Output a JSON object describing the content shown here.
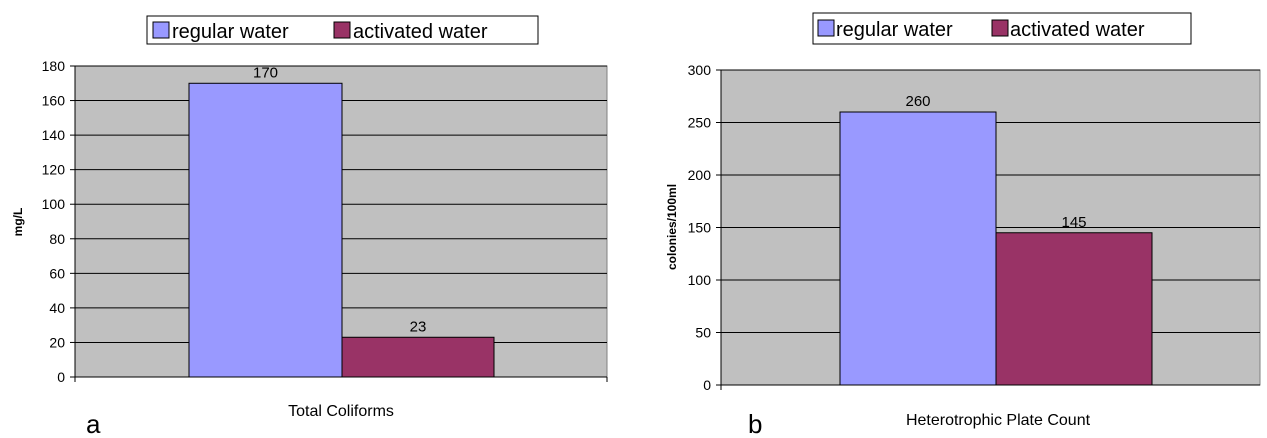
{
  "chart_data": [
    {
      "type": "bar",
      "panel_label": "a",
      "categories": [
        "Total Coliforms"
      ],
      "series": [
        {
          "name": "regular water",
          "values": [
            170
          ],
          "color": "#9999ff"
        },
        {
          "name": "activated water",
          "values": [
            23
          ],
          "color": "#993366"
        }
      ],
      "xlabel": "",
      "ylabel": "mg/L",
      "ylim": [
        0,
        180
      ],
      "yticks": [
        0,
        20,
        40,
        60,
        80,
        100,
        120,
        140,
        160,
        180
      ],
      "data_labels": [
        "170",
        "23"
      ],
      "grid": true,
      "plot_background": "#c0c0c0",
      "legend_position": "top"
    },
    {
      "type": "bar",
      "panel_label": "b",
      "categories": [
        "Heterotrophic Plate Count"
      ],
      "series": [
        {
          "name": "regular water",
          "values": [
            260
          ],
          "color": "#9999ff"
        },
        {
          "name": "activated water",
          "values": [
            145
          ],
          "color": "#993366"
        }
      ],
      "xlabel": "",
      "ylabel": "colonies/100ml",
      "ylim": [
        0,
        300
      ],
      "yticks": [
        0,
        50,
        100,
        150,
        200,
        250,
        300
      ],
      "data_labels": [
        "260",
        "145"
      ],
      "grid": true,
      "plot_background": "#c0c0c0",
      "legend_position": "top"
    }
  ]
}
